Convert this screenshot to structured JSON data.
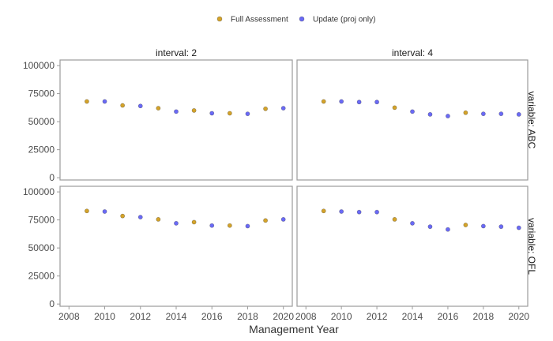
{
  "chart_data": {
    "type": "scatter",
    "facet_columns": {
      "title_prefix": "interval: ",
      "values": [
        "2",
        "4"
      ]
    },
    "facet_rows": {
      "title_prefix": "variable: ",
      "values": [
        "ABC",
        "OFL"
      ]
    },
    "xlabel": "Management Year",
    "ylabel": "",
    "xlim": [
      2007.5,
      2020.5
    ],
    "ylim": [
      -2000,
      105000
    ],
    "xticks": [
      2008,
      2010,
      2012,
      2014,
      2016,
      2018,
      2020
    ],
    "yticks": [
      0,
      25000,
      50000,
      75000,
      100000
    ],
    "legend": {
      "position": "top",
      "entries": [
        {
          "label": "Full Assessment",
          "color": "#D4A32A"
        },
        {
          "label": "Update (proj only)",
          "color": "#6A6AF5"
        }
      ]
    },
    "grid": false,
    "panels": [
      {
        "interval": "2",
        "variable": "ABC",
        "points": [
          {
            "x": 2009,
            "y": 68000,
            "type": "Full Assessment"
          },
          {
            "x": 2010,
            "y": 68000,
            "type": "Update (proj only)"
          },
          {
            "x": 2011,
            "y": 64500,
            "type": "Full Assessment"
          },
          {
            "x": 2012,
            "y": 64000,
            "type": "Update (proj only)"
          },
          {
            "x": 2013,
            "y": 62000,
            "type": "Full Assessment"
          },
          {
            "x": 2014,
            "y": 59000,
            "type": "Update (proj only)"
          },
          {
            "x": 2015,
            "y": 60000,
            "type": "Full Assessment"
          },
          {
            "x": 2016,
            "y": 57500,
            "type": "Update (proj only)"
          },
          {
            "x": 2017,
            "y": 57500,
            "type": "Full Assessment"
          },
          {
            "x": 2018,
            "y": 57000,
            "type": "Update (proj only)"
          },
          {
            "x": 2019,
            "y": 61500,
            "type": "Full Assessment"
          },
          {
            "x": 2020,
            "y": 62000,
            "type": "Update (proj only)"
          }
        ]
      },
      {
        "interval": "4",
        "variable": "ABC",
        "points": [
          {
            "x": 2009,
            "y": 68000,
            "type": "Full Assessment"
          },
          {
            "x": 2010,
            "y": 68000,
            "type": "Update (proj only)"
          },
          {
            "x": 2011,
            "y": 67500,
            "type": "Update (proj only)"
          },
          {
            "x": 2012,
            "y": 67500,
            "type": "Update (proj only)"
          },
          {
            "x": 2013,
            "y": 62500,
            "type": "Full Assessment"
          },
          {
            "x": 2014,
            "y": 59000,
            "type": "Update (proj only)"
          },
          {
            "x": 2015,
            "y": 56500,
            "type": "Update (proj only)"
          },
          {
            "x": 2016,
            "y": 55000,
            "type": "Update (proj only)"
          },
          {
            "x": 2017,
            "y": 58000,
            "type": "Full Assessment"
          },
          {
            "x": 2018,
            "y": 57000,
            "type": "Update (proj only)"
          },
          {
            "x": 2019,
            "y": 57000,
            "type": "Update (proj only)"
          },
          {
            "x": 2020,
            "y": 56500,
            "type": "Update (proj only)"
          }
        ]
      },
      {
        "interval": "2",
        "variable": "OFL",
        "points": [
          {
            "x": 2009,
            "y": 83000,
            "type": "Full Assessment"
          },
          {
            "x": 2010,
            "y": 82500,
            "type": "Update (proj only)"
          },
          {
            "x": 2011,
            "y": 78500,
            "type": "Full Assessment"
          },
          {
            "x": 2012,
            "y": 77500,
            "type": "Update (proj only)"
          },
          {
            "x": 2013,
            "y": 75500,
            "type": "Full Assessment"
          },
          {
            "x": 2014,
            "y": 72000,
            "type": "Update (proj only)"
          },
          {
            "x": 2015,
            "y": 73000,
            "type": "Full Assessment"
          },
          {
            "x": 2016,
            "y": 70000,
            "type": "Update (proj only)"
          },
          {
            "x": 2017,
            "y": 70000,
            "type": "Full Assessment"
          },
          {
            "x": 2018,
            "y": 69500,
            "type": "Update (proj only)"
          },
          {
            "x": 2019,
            "y": 74500,
            "type": "Full Assessment"
          },
          {
            "x": 2020,
            "y": 75500,
            "type": "Update (proj only)"
          }
        ]
      },
      {
        "interval": "4",
        "variable": "OFL",
        "points": [
          {
            "x": 2009,
            "y": 83000,
            "type": "Full Assessment"
          },
          {
            "x": 2010,
            "y": 82500,
            "type": "Update (proj only)"
          },
          {
            "x": 2011,
            "y": 82000,
            "type": "Update (proj only)"
          },
          {
            "x": 2012,
            "y": 82000,
            "type": "Update (proj only)"
          },
          {
            "x": 2013,
            "y": 75500,
            "type": "Full Assessment"
          },
          {
            "x": 2014,
            "y": 72000,
            "type": "Update (proj only)"
          },
          {
            "x": 2015,
            "y": 69000,
            "type": "Update (proj only)"
          },
          {
            "x": 2016,
            "y": 66500,
            "type": "Update (proj only)"
          },
          {
            "x": 2017,
            "y": 70500,
            "type": "Full Assessment"
          },
          {
            "x": 2018,
            "y": 69500,
            "type": "Update (proj only)"
          },
          {
            "x": 2019,
            "y": 69000,
            "type": "Update (proj only)"
          },
          {
            "x": 2020,
            "y": 68000,
            "type": "Update (proj only)"
          }
        ]
      }
    ]
  }
}
